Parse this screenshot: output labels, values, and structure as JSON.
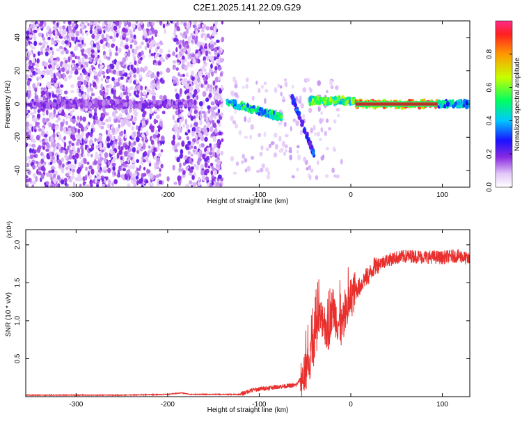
{
  "title": "C2E1.2025.141.22.09.G29",
  "chart_data": [
    {
      "type": "heatmap",
      "xlabel": "Height of straight line (km)",
      "ylabel": "Frequency (Hz)",
      "xlim": [
        -355,
        130
      ],
      "ylim": [
        -50,
        50
      ],
      "x_ticks": [
        -300,
        -200,
        -100,
        0,
        100
      ],
      "y_ticks": [
        -40,
        -20,
        0,
        20,
        40
      ],
      "colorbar": {
        "label": "Normalized spectral amplitude",
        "range": [
          0,
          1
        ],
        "ticks": [
          0.0,
          0.2,
          0.4,
          0.6,
          0.8
        ]
      },
      "regions": [
        {
          "x_range": [
            -355,
            -140
          ],
          "description": "scattered low-amplitude noise across all frequencies (gap near -205 to -195)"
        },
        {
          "x_range": [
            -350,
            -170
          ],
          "freq_center": 0,
          "amplitude": 0.2
        },
        {
          "x_range": [
            -135,
            -75
          ],
          "freq_center_start": 1,
          "freq_center_end": -8,
          "amplitude": 0.55
        },
        {
          "x_range": [
            -65,
            -40
          ],
          "freq_center_start": 5,
          "freq_center_end": -30,
          "amplitude": 0.35
        },
        {
          "x_range": [
            -45,
            5
          ],
          "freq_center": 2,
          "amplitude": 0.65
        },
        {
          "x_range": [
            5,
            95
          ],
          "freq_center": 0,
          "amplitude": 0.95
        },
        {
          "x_range": [
            95,
            130
          ],
          "freq_center": 0,
          "amplitude": 0.5
        }
      ]
    },
    {
      "type": "line",
      "xlabel": "Height of straight line (km)",
      "ylabel": "SNR (10 * v/v)",
      "y_scale_label": "(x10⁴)",
      "xlim": [
        -355,
        130
      ],
      "ylim": [
        0,
        2.2
      ],
      "x_ticks": [
        -300,
        -200,
        -100,
        0,
        100
      ],
      "y_ticks": [
        0.5,
        1.0,
        1.5,
        2.0
      ],
      "color": "#e8302e",
      "series": [
        {
          "x": [
            -355,
            -300,
            -250,
            -200,
            -185,
            -175,
            -150,
            -120,
            -110,
            -100,
            -80,
            -60,
            -50,
            -45,
            -40,
            -35,
            -30,
            -25,
            -20,
            -15,
            -10,
            -5,
            0,
            5,
            10,
            15,
            20,
            25,
            30,
            40,
            50,
            60,
            70,
            80,
            90,
            100,
            110,
            120,
            130
          ],
          "y": [
            0.02,
            0.02,
            0.02,
            0.03,
            0.05,
            0.03,
            0.03,
            0.03,
            0.08,
            0.1,
            0.13,
            0.15,
            0.3,
            0.45,
            0.7,
            1.0,
            1.05,
            0.8,
            1.2,
            1.0,
            0.9,
            1.1,
            1.3,
            1.4,
            1.45,
            1.55,
            1.6,
            1.7,
            1.75,
            1.8,
            1.83,
            1.85,
            1.85,
            1.84,
            1.84,
            1.83,
            1.85,
            1.85,
            1.8
          ]
        }
      ]
    }
  ]
}
